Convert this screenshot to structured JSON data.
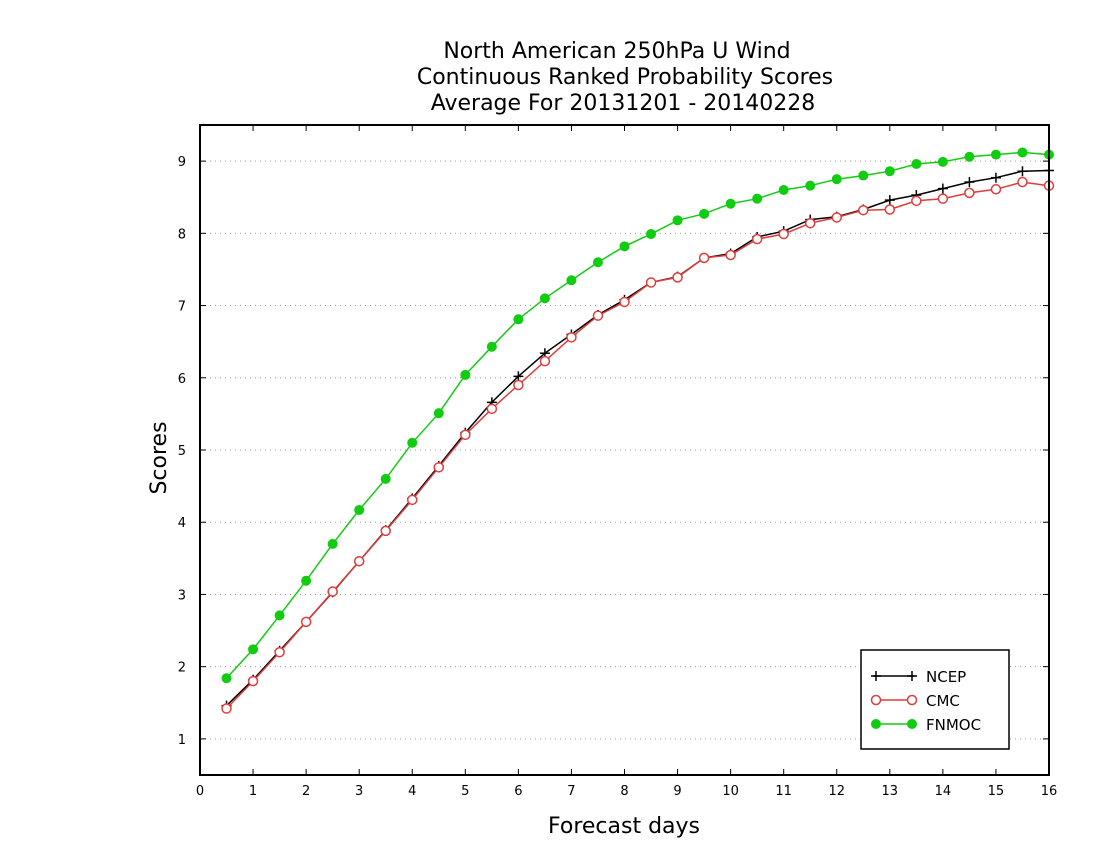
{
  "chart_data": {
    "type": "line",
    "title": "North American 250hPa U Wind",
    "subtitle_1": "Continuous Ranked Probability Scores",
    "subtitle_2": "Average For 20131201 - 20140228",
    "xlabel": "Forecast days",
    "ylabel": "Scores",
    "xlim": [
      0,
      16
    ],
    "ylim": [
      0.5,
      9.5
    ],
    "xticks": [
      0,
      1,
      2,
      3,
      4,
      5,
      6,
      7,
      8,
      9,
      10,
      11,
      12,
      13,
      14,
      15,
      16
    ],
    "yticks": [
      1,
      2,
      3,
      4,
      5,
      6,
      7,
      8,
      9
    ],
    "grid": "horizontal-dotted",
    "legend_position": "bottom-right",
    "x": [
      0.5,
      1,
      1.5,
      2,
      2.5,
      3,
      3.5,
      4,
      4.5,
      5,
      5.5,
      6,
      6.5,
      7,
      7.5,
      8,
      8.5,
      9,
      9.5,
      10,
      10.5,
      11,
      11.5,
      12,
      12.5,
      13,
      13.5,
      14,
      14.5,
      15,
      15.5,
      16
    ],
    "series": [
      {
        "name": "NCEP",
        "marker": "plus",
        "color": "#000000",
        "values": [
          1.46,
          1.82,
          2.22,
          2.62,
          3.03,
          3.46,
          3.89,
          4.33,
          4.78,
          5.24,
          5.66,
          6.02,
          6.34,
          6.6,
          6.87,
          7.08,
          7.32,
          7.4,
          7.66,
          7.72,
          7.95,
          8.03,
          8.19,
          8.23,
          8.33,
          8.46,
          8.53,
          8.62,
          8.71,
          8.77,
          8.86,
          8.87
        ]
      },
      {
        "name": "CMC",
        "marker": "open-circle",
        "color": "#e03c3c",
        "values": [
          1.42,
          1.8,
          2.2,
          2.62,
          3.04,
          3.46,
          3.88,
          4.31,
          4.76,
          5.21,
          5.57,
          5.9,
          6.23,
          6.56,
          6.86,
          7.05,
          7.32,
          7.39,
          7.66,
          7.7,
          7.92,
          7.99,
          8.14,
          8.22,
          8.32,
          8.33,
          8.45,
          8.48,
          8.56,
          8.61,
          8.71,
          8.66
        ]
      },
      {
        "name": "FNMOC",
        "marker": "filled-circle",
        "color": "#11cc11",
        "values": [
          1.84,
          2.24,
          2.71,
          3.19,
          3.7,
          4.17,
          4.6,
          5.1,
          5.51,
          6.04,
          6.43,
          6.81,
          7.1,
          7.35,
          7.6,
          7.82,
          7.99,
          8.18,
          8.27,
          8.41,
          8.48,
          8.6,
          8.66,
          8.75,
          8.8,
          8.86,
          8.96,
          8.99,
          9.06,
          9.09,
          9.12,
          9.09
        ]
      }
    ]
  }
}
